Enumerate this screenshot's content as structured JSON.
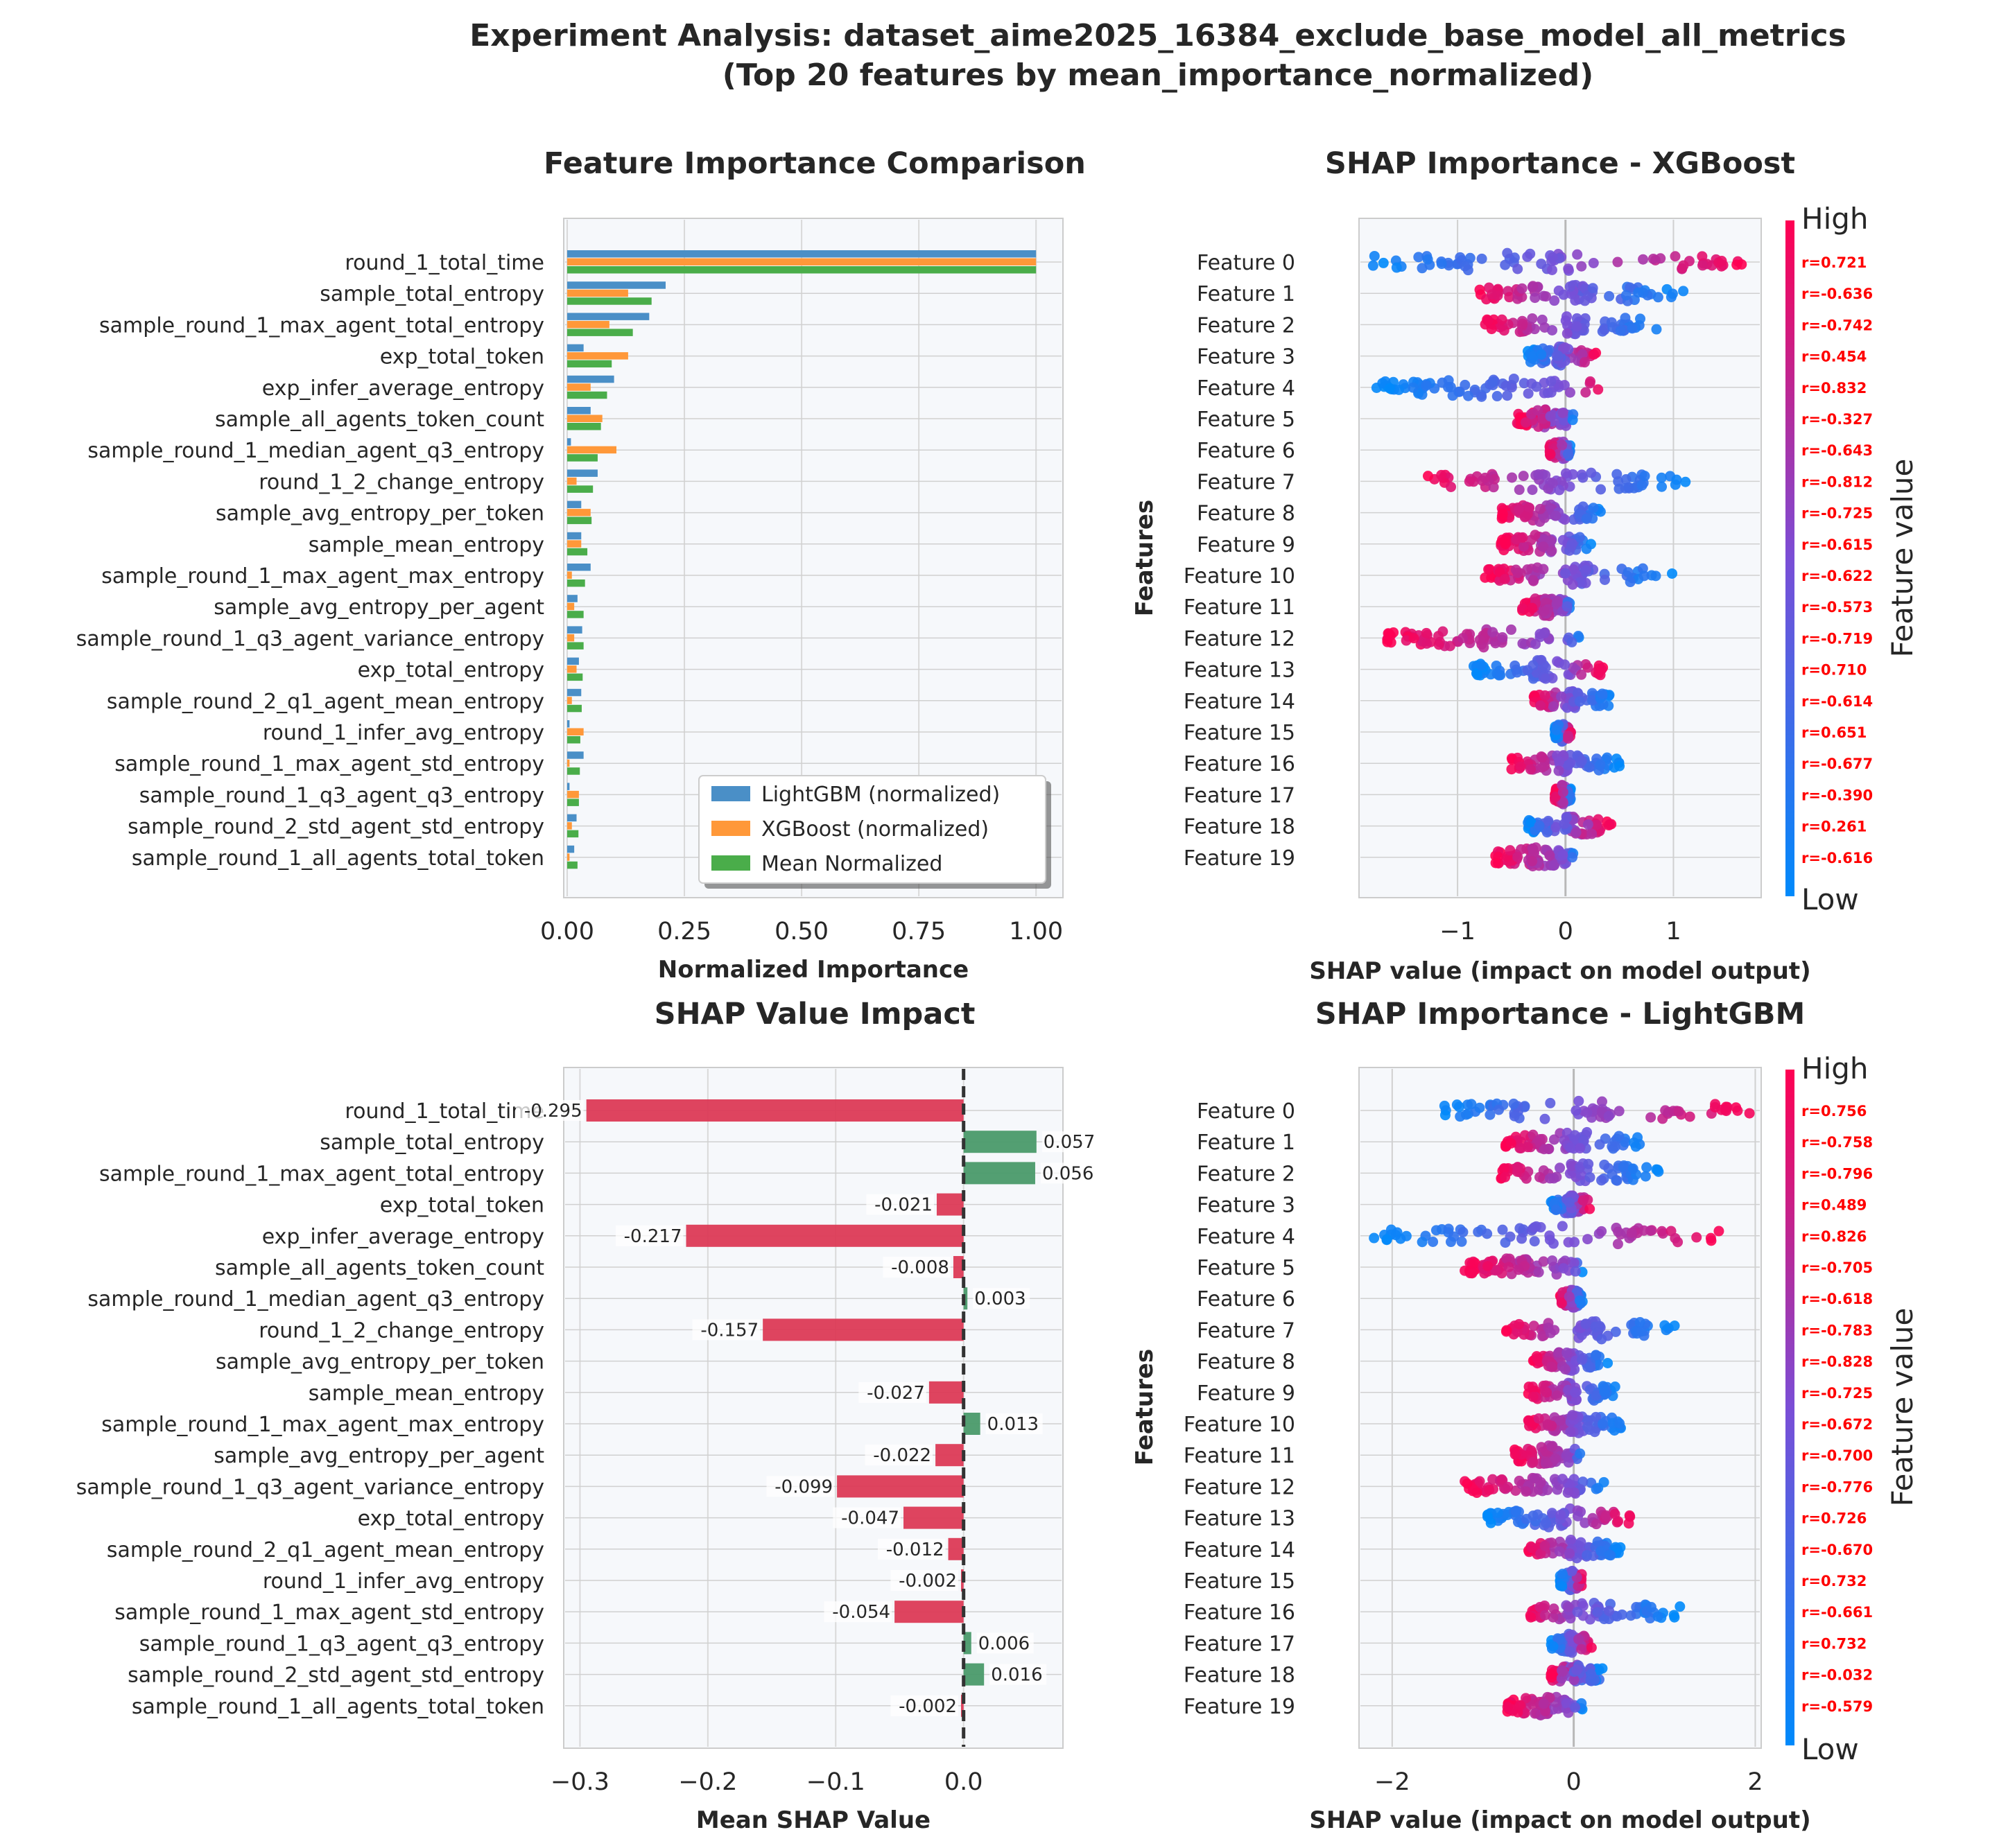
{
  "suptitle": {
    "line1": "Experiment Analysis: dataset_aime2025_16384_exclude_base_model_all_metrics",
    "line2": "(Top 20 features by mean_importance_normalized)"
  },
  "colors": {
    "lightgbm": "#4a8fc7",
    "xgboost": "#ff9839",
    "mean": "#4aad4a",
    "negative": "#dc3a56",
    "positive": "#4a9a6a",
    "low": "#008afb",
    "high": "#ff0052"
  },
  "colorbar": {
    "high_label": "High",
    "low_label": "Low",
    "title": "Feature value"
  },
  "chart_data": [
    {
      "type": "bar",
      "orientation": "horizontal",
      "title": "Feature Importance Comparison",
      "xlabel": "Normalized Importance",
      "xlim": [
        0,
        1.05
      ],
      "xticks": [
        0,
        0.25,
        0.5,
        0.75,
        1.0
      ],
      "xtick_labels": [
        "0.00",
        "0.25",
        "0.50",
        "0.75",
        "1.00"
      ],
      "legend_position": "lower-right",
      "categories": [
        "round_1_total_time",
        "sample_total_entropy",
        "sample_round_1_max_agent_total_entropy",
        "exp_total_token",
        "exp_infer_average_entropy",
        "sample_all_agents_token_count",
        "sample_round_1_median_agent_q3_entropy",
        "round_1_2_change_entropy",
        "sample_avg_entropy_per_token",
        "sample_mean_entropy",
        "sample_round_1_max_agent_max_entropy",
        "sample_avg_entropy_per_agent",
        "sample_round_1_q3_agent_variance_entropy",
        "exp_total_entropy",
        "sample_round_2_q1_agent_mean_entropy",
        "round_1_infer_avg_entropy",
        "sample_round_1_max_agent_std_entropy",
        "sample_round_1_q3_agent_q3_entropy",
        "sample_round_2_std_agent_std_entropy",
        "sample_round_1_all_agents_total_token"
      ],
      "series": [
        {
          "name": "LightGBM (normalized)",
          "color": "#4a8fc7",
          "values": [
            1.0,
            0.21,
            0.175,
            0.035,
            0.1,
            0.05,
            0.008,
            0.065,
            0.03,
            0.03,
            0.05,
            0.022,
            0.032,
            0.025,
            0.03,
            0.005,
            0.035,
            0.005,
            0.02,
            0.015
          ]
        },
        {
          "name": "XGBoost (normalized)",
          "color": "#ff9839",
          "values": [
            1.0,
            0.13,
            0.09,
            0.13,
            0.05,
            0.075,
            0.105,
            0.02,
            0.05,
            0.03,
            0.01,
            0.015,
            0.015,
            0.02,
            0.01,
            0.035,
            0.005,
            0.025,
            0.01,
            0.005
          ]
        },
        {
          "name": "Mean Normalized",
          "color": "#4aad4a",
          "values": [
            1.0,
            0.18,
            0.14,
            0.095,
            0.085,
            0.072,
            0.065,
            0.055,
            0.052,
            0.043,
            0.038,
            0.035,
            0.035,
            0.033,
            0.031,
            0.028,
            0.027,
            0.025,
            0.024,
            0.022
          ]
        }
      ]
    },
    {
      "type": "scatter",
      "subtype": "shap-beeswarm",
      "title": "SHAP Importance - XGBoost",
      "xlabel": "SHAP value (impact on model output)",
      "ylabel": "Features",
      "xlim": [
        -1.9,
        1.8
      ],
      "xticks": [
        -1,
        0,
        1
      ],
      "xtick_labels": [
        "−1",
        "0",
        "1"
      ],
      "categories": [
        "Feature 0",
        "Feature 1",
        "Feature 2",
        "Feature 3",
        "Feature 4",
        "Feature 5",
        "Feature 6",
        "Feature 7",
        "Feature 8",
        "Feature 9",
        "Feature 10",
        "Feature 11",
        "Feature 12",
        "Feature 13",
        "Feature 14",
        "Feature 15",
        "Feature 16",
        "Feature 17",
        "Feature 18",
        "Feature 19"
      ],
      "correlations": [
        "r=0.721",
        "r=-0.636",
        "r=-0.742",
        "r=0.454",
        "r=0.832",
        "r=-0.327",
        "r=-0.643",
        "r=-0.812",
        "r=-0.725",
        "r=-0.615",
        "r=-0.622",
        "r=-0.573",
        "r=-0.719",
        "r=0.710",
        "r=-0.614",
        "r=0.651",
        "r=-0.677",
        "r=-0.390",
        "r=0.261",
        "r=-0.616"
      ],
      "ranges": [
        [
          -1.85,
          1.65
        ],
        [
          -0.8,
          1.1
        ],
        [
          -0.75,
          0.95
        ],
        [
          -0.35,
          0.3
        ],
        [
          -1.75,
          0.35
        ],
        [
          -0.45,
          0.1
        ],
        [
          -0.15,
          0.05
        ],
        [
          -1.3,
          1.15
        ],
        [
          -0.6,
          0.35
        ],
        [
          -0.6,
          0.25
        ],
        [
          -0.75,
          1.0
        ],
        [
          -0.4,
          0.05
        ],
        [
          -1.65,
          0.15
        ],
        [
          -0.85,
          0.35
        ],
        [
          -0.3,
          0.45
        ],
        [
          -0.1,
          0.05
        ],
        [
          -0.5,
          0.5
        ],
        [
          -0.1,
          0.05
        ],
        [
          -0.35,
          0.45
        ],
        [
          -0.65,
          0.1
        ]
      ]
    },
    {
      "type": "bar",
      "orientation": "horizontal",
      "title": "SHAP Value Impact",
      "xlabel": "Mean SHAP Value",
      "xlim": [
        -0.31,
        0.075
      ],
      "xticks": [
        -0.3,
        -0.2,
        -0.1,
        0.0
      ],
      "xtick_labels": [
        "−0.3",
        "−0.2",
        "−0.1",
        "0.0"
      ],
      "categories": [
        "round_1_total_time",
        "sample_total_entropy",
        "sample_round_1_max_agent_total_entropy",
        "exp_total_token",
        "exp_infer_average_entropy",
        "sample_all_agents_token_count",
        "sample_round_1_median_agent_q3_entropy",
        "round_1_2_change_entropy",
        "sample_avg_entropy_per_token",
        "sample_mean_entropy",
        "sample_round_1_max_agent_max_entropy",
        "sample_avg_entropy_per_agent",
        "sample_round_1_q3_agent_variance_entropy",
        "exp_total_entropy",
        "sample_round_2_q1_agent_mean_entropy",
        "round_1_infer_avg_entropy",
        "sample_round_1_max_agent_std_entropy",
        "sample_round_1_q3_agent_q3_entropy",
        "sample_round_2_std_agent_std_entropy",
        "sample_round_1_all_agents_total_token"
      ],
      "values": [
        -0.295,
        0.057,
        0.056,
        -0.021,
        -0.217,
        -0.008,
        0.003,
        -0.157,
        null,
        -0.027,
        0.013,
        -0.022,
        -0.099,
        -0.047,
        -0.012,
        -0.002,
        -0.054,
        0.006,
        0.016,
        -0.002
      ],
      "value_labels": [
        "-0.295",
        "0.057",
        "0.056",
        "-0.021",
        "-0.217",
        "-0.008",
        "0.003",
        "-0.157",
        "",
        "-0.027",
        "0.013",
        "-0.022",
        "-0.099",
        "-0.047",
        "-0.012",
        "-0.002",
        "-0.054",
        "0.006",
        "0.016",
        "-0.002"
      ]
    },
    {
      "type": "scatter",
      "subtype": "shap-beeswarm",
      "title": "SHAP Importance - LightGBM",
      "xlabel": "SHAP value (impact on model output)",
      "ylabel": "Features",
      "xlim": [
        -2.35,
        2.05
      ],
      "xticks": [
        -2,
        0,
        2
      ],
      "xtick_labels": [
        "−2",
        "0",
        "2"
      ],
      "categories": [
        "Feature 0",
        "Feature 1",
        "Feature 2",
        "Feature 3",
        "Feature 4",
        "Feature 5",
        "Feature 6",
        "Feature 7",
        "Feature 8",
        "Feature 9",
        "Feature 10",
        "Feature 11",
        "Feature 12",
        "Feature 13",
        "Feature 14",
        "Feature 15",
        "Feature 16",
        "Feature 17",
        "Feature 18",
        "Feature 19"
      ],
      "correlations": [
        "r=0.756",
        "r=-0.758",
        "r=-0.796",
        "r=0.489",
        "r=0.826",
        "r=-0.705",
        "r=-0.618",
        "r=-0.783",
        "r=-0.828",
        "r=-0.725",
        "r=-0.672",
        "r=-0.700",
        "r=-0.776",
        "r=0.726",
        "r=-0.670",
        "r=0.732",
        "r=-0.661",
        "r=0.732",
        "r=-0.032",
        "r=-0.579"
      ],
      "ranges": [
        [
          -1.5,
          1.95
        ],
        [
          -0.75,
          0.85
        ],
        [
          -0.8,
          0.95
        ],
        [
          -0.25,
          0.2
        ],
        [
          -2.2,
          1.6
        ],
        [
          -1.2,
          0.1
        ],
        [
          -0.15,
          0.1
        ],
        [
          -0.75,
          1.15
        ],
        [
          -0.45,
          0.4
        ],
        [
          -0.5,
          0.5
        ],
        [
          -0.5,
          0.6
        ],
        [
          -0.65,
          0.1
        ],
        [
          -1.2,
          0.35
        ],
        [
          -0.95,
          0.65
        ],
        [
          -0.5,
          0.55
        ],
        [
          -0.15,
          0.1
        ],
        [
          -0.5,
          1.2
        ],
        [
          -0.25,
          0.2
        ],
        [
          -0.25,
          0.35
        ],
        [
          -0.75,
          0.1
        ]
      ]
    }
  ]
}
